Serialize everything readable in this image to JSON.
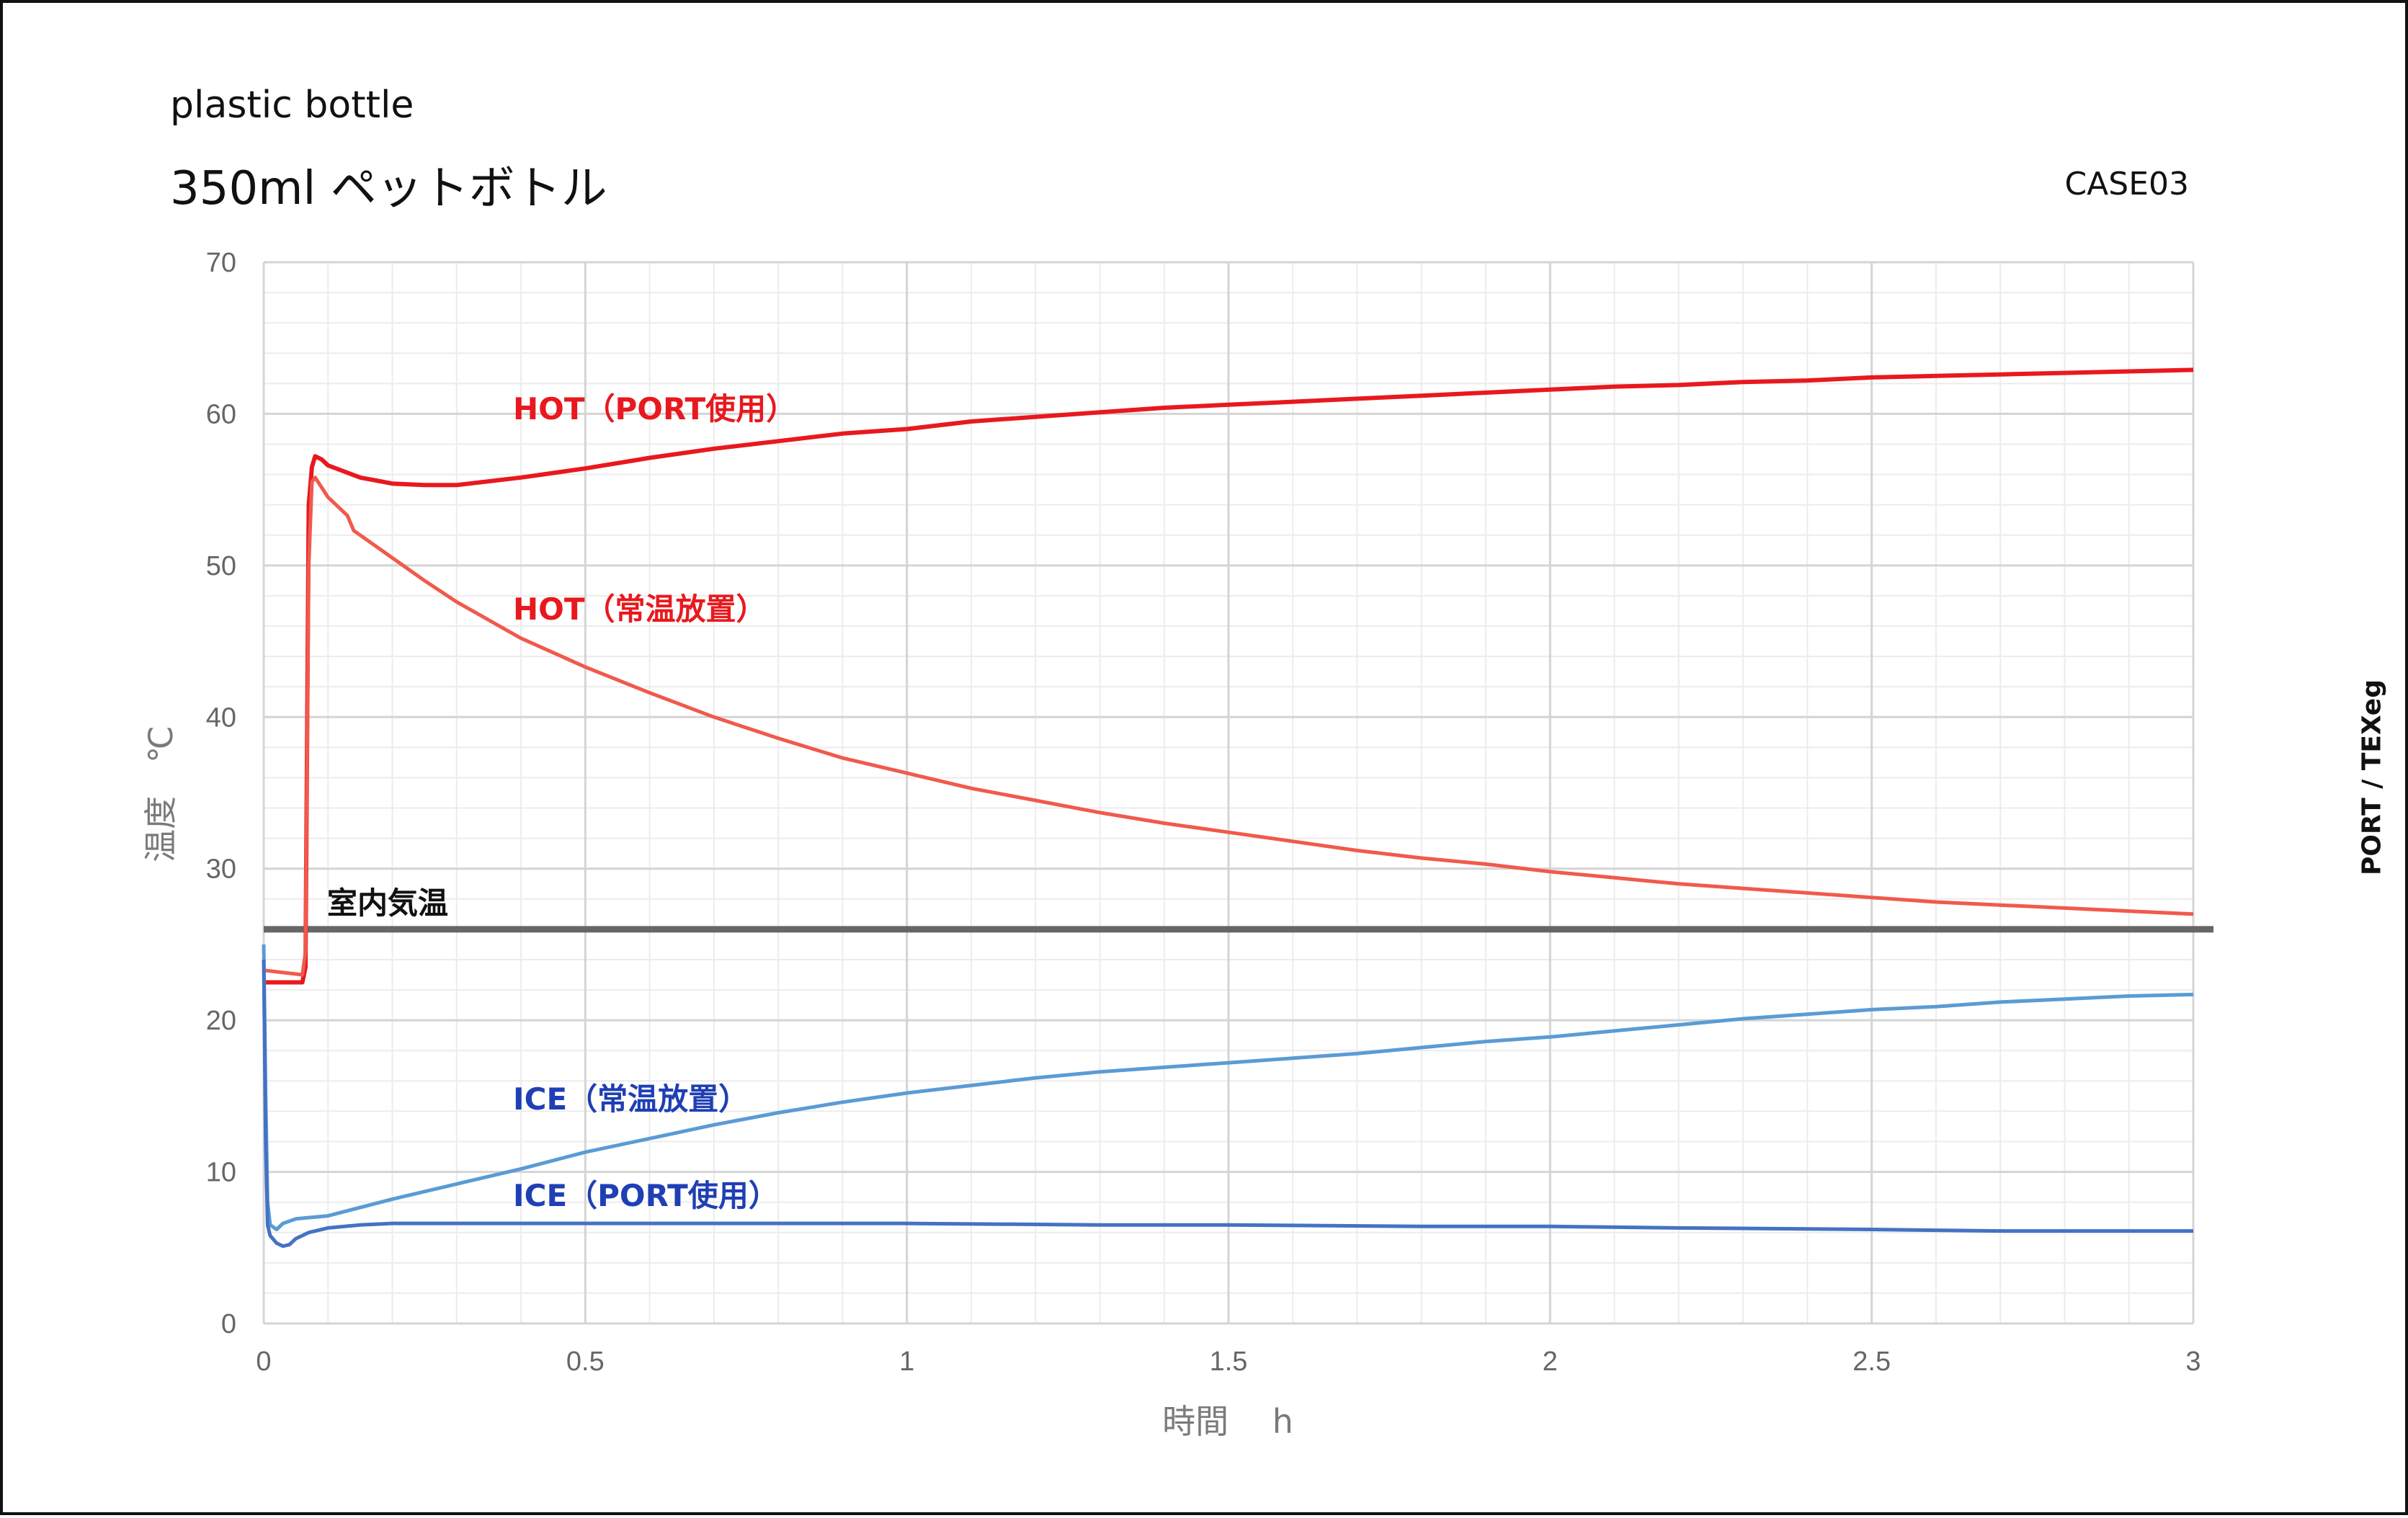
{
  "header": {
    "subtitle": "plastic bottle",
    "title": "350ml ペットボトル",
    "case": "CASE03",
    "credit": "PORT / TEXeg"
  },
  "chart_data": {
    "type": "line",
    "xlabel": "時間 h",
    "ylabel": "温度 ℃",
    "xlim": [
      0,
      3
    ],
    "ylim": [
      0,
      70
    ],
    "x_ticks": [
      "0",
      "0.5",
      "1",
      "1.5",
      "2",
      "2.5",
      "3"
    ],
    "y_ticks": [
      "0",
      "10",
      "20",
      "30",
      "40",
      "50",
      "60",
      "70"
    ],
    "grid": true,
    "legend": "inline labels",
    "series": [
      {
        "name": "HOT（PORT使用）",
        "color": "#e8191e",
        "label_color": "#e8191e",
        "x": [
          0,
          0.06,
          0.065,
          0.07,
          0.075,
          0.08,
          0.09,
          0.1,
          0.15,
          0.2,
          0.25,
          0.3,
          0.4,
          0.5,
          0.6,
          0.7,
          0.8,
          0.9,
          1.0,
          1.1,
          1.2,
          1.3,
          1.4,
          1.5,
          1.6,
          1.7,
          1.8,
          1.9,
          2.0,
          2.1,
          2.2,
          2.3,
          2.4,
          2.5,
          2.6,
          2.7,
          2.8,
          2.9,
          3.0
        ],
        "y": [
          22.5,
          22.5,
          23.5,
          54,
          56.5,
          57.2,
          57.0,
          56.6,
          55.8,
          55.4,
          55.3,
          55.3,
          55.8,
          56.4,
          57.1,
          57.7,
          58.2,
          58.7,
          59.0,
          59.5,
          59.8,
          60.1,
          60.4,
          60.6,
          60.8,
          61.0,
          61.2,
          61.4,
          61.6,
          61.8,
          61.9,
          62.1,
          62.2,
          62.4,
          62.5,
          62.6,
          62.7,
          62.8,
          62.9
        ]
      },
      {
        "name": "HOT（常温放置）",
        "color": "#f05a4c",
        "label_color": "#e8191e",
        "x": [
          0,
          0.06,
          0.065,
          0.07,
          0.075,
          0.08,
          0.1,
          0.13,
          0.14,
          0.2,
          0.25,
          0.3,
          0.4,
          0.5,
          0.6,
          0.7,
          0.8,
          0.9,
          1.0,
          1.1,
          1.2,
          1.3,
          1.4,
          1.5,
          1.6,
          1.7,
          1.8,
          1.9,
          2.0,
          2.1,
          2.2,
          2.3,
          2.4,
          2.5,
          2.6,
          2.7,
          2.8,
          2.9,
          3.0
        ],
        "y": [
          23.3,
          23.0,
          24.5,
          50,
          55.5,
          55.8,
          54.5,
          53.3,
          52.3,
          50.5,
          49.0,
          47.6,
          45.2,
          43.3,
          41.6,
          40.0,
          38.6,
          37.3,
          36.3,
          35.3,
          34.5,
          33.7,
          33.0,
          32.4,
          31.8,
          31.2,
          30.7,
          30.3,
          29.8,
          29.4,
          29.0,
          28.7,
          28.4,
          28.1,
          27.8,
          27.6,
          27.4,
          27.2,
          27.0
        ]
      },
      {
        "name": "ICE（常温放置）",
        "color": "#5b9bd5",
        "label_color": "#1f3fb4",
        "x": [
          0,
          0.003,
          0.006,
          0.01,
          0.02,
          0.03,
          0.05,
          0.1,
          0.2,
          0.3,
          0.4,
          0.5,
          0.6,
          0.7,
          0.8,
          0.9,
          1.0,
          1.1,
          1.2,
          1.3,
          1.4,
          1.5,
          1.6,
          1.7,
          1.8,
          1.9,
          2.0,
          2.1,
          2.2,
          2.3,
          2.4,
          2.5,
          2.6,
          2.7,
          2.8,
          2.9,
          3.0
        ],
        "y": [
          25.0,
          15.0,
          8.0,
          6.5,
          6.2,
          6.6,
          6.9,
          7.1,
          8.2,
          9.2,
          10.2,
          11.3,
          12.2,
          13.1,
          13.9,
          14.6,
          15.2,
          15.7,
          16.2,
          16.6,
          16.9,
          17.2,
          17.5,
          17.8,
          18.2,
          18.6,
          18.9,
          19.3,
          19.7,
          20.1,
          20.4,
          20.7,
          20.9,
          21.2,
          21.4,
          21.6,
          21.7
        ]
      },
      {
        "name": "ICE（PORT使用）",
        "color": "#4472c4",
        "label_color": "#1f3fb4",
        "x": [
          0,
          0.003,
          0.006,
          0.01,
          0.02,
          0.03,
          0.04,
          0.05,
          0.07,
          0.1,
          0.15,
          0.2,
          0.3,
          0.5,
          0.7,
          1.0,
          1.3,
          1.5,
          1.8,
          2.0,
          2.2,
          2.5,
          2.7,
          3.0
        ],
        "y": [
          24.0,
          12.0,
          6.5,
          5.8,
          5.3,
          5.1,
          5.2,
          5.6,
          6.0,
          6.3,
          6.5,
          6.6,
          6.6,
          6.6,
          6.6,
          6.6,
          6.5,
          6.5,
          6.4,
          6.4,
          6.3,
          6.2,
          6.1,
          6.1
        ]
      }
    ],
    "reference_line": {
      "name": "室内気温",
      "y": 26,
      "color": "#666666"
    }
  }
}
